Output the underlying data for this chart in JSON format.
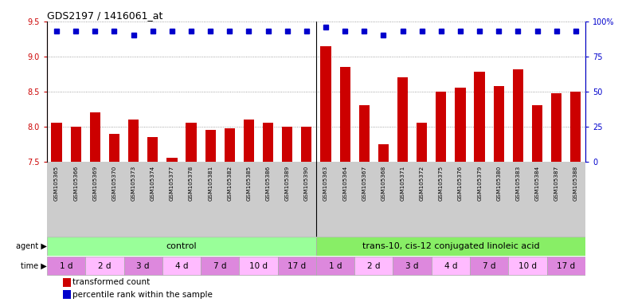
{
  "title": "GDS2197 / 1416061_at",
  "samples": [
    "GSM105365",
    "GSM105366",
    "GSM105369",
    "GSM105370",
    "GSM105373",
    "GSM105374",
    "GSM105377",
    "GSM105378",
    "GSM105381",
    "GSM105382",
    "GSM105385",
    "GSM105386",
    "GSM105389",
    "GSM105390",
    "GSM105363",
    "GSM105364",
    "GSM105367",
    "GSM105368",
    "GSM105371",
    "GSM105372",
    "GSM105375",
    "GSM105376",
    "GSM105379",
    "GSM105380",
    "GSM105383",
    "GSM105384",
    "GSM105387",
    "GSM105388"
  ],
  "bar_values": [
    8.05,
    8.0,
    8.2,
    7.9,
    8.1,
    7.85,
    7.55,
    8.05,
    7.95,
    7.97,
    8.1,
    8.05,
    8.0,
    8.0,
    9.15,
    8.85,
    8.3,
    7.75,
    8.7,
    8.05,
    8.5,
    8.55,
    8.78,
    8.58,
    8.82,
    8.3,
    8.48,
    8.5
  ],
  "percentile_values": [
    93,
    93,
    93,
    93,
    90,
    93,
    93,
    93,
    93,
    93,
    93,
    93,
    93,
    93,
    96,
    93,
    93,
    90,
    93,
    93,
    93,
    93,
    93,
    93,
    93,
    93,
    93,
    93
  ],
  "bar_color": "#cc0000",
  "dot_color": "#0000cc",
  "ylim_left": [
    7.5,
    9.5
  ],
  "yticks_left": [
    7.5,
    8.0,
    8.5,
    9.0,
    9.5
  ],
  "ylim_right": [
    0,
    100
  ],
  "yticks_right": [
    0,
    25,
    50,
    75,
    100
  ],
  "ytick_labels_right": [
    "0",
    "25",
    "50",
    "75",
    "100%"
  ],
  "control_label": "control",
  "treatment_label": "trans-10, cis-12 conjugated linoleic acid",
  "agent_label": "agent",
  "time_label": "time",
  "time_group_labels": [
    "1 d",
    "2 d",
    "3 d",
    "4 d",
    "7 d",
    "10 d",
    "17 d"
  ],
  "legend_bar_label": "transformed count",
  "legend_dot_label": "percentile rank within the sample",
  "n_control": 14,
  "n_treatment": 14,
  "control_bg": "#99ff99",
  "treatment_bg": "#88ee66",
  "time_bg_odd": "#dd88dd",
  "time_bg_even": "#ffbbff",
  "xticklabel_bg": "#cccccc",
  "dotted_line_color": "#888888"
}
